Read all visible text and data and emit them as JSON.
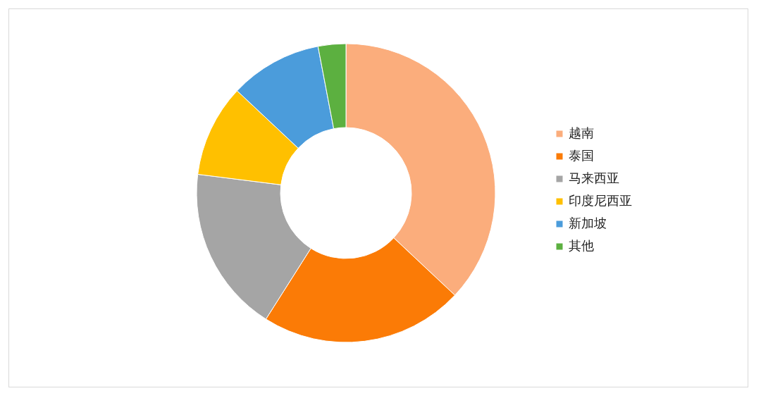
{
  "chart_data": {
    "type": "donut",
    "categories": [
      "越南",
      "泰国",
      "马来西亚",
      "印度尼西亚",
      "新加坡",
      "其他"
    ],
    "values": [
      37,
      22,
      18,
      10,
      10,
      3
    ],
    "colors": [
      "#fbad7c",
      "#fb7b06",
      "#a5a5a5",
      "#ffc000",
      "#4b9cdb",
      "#5cb040"
    ],
    "legend": "right"
  }
}
